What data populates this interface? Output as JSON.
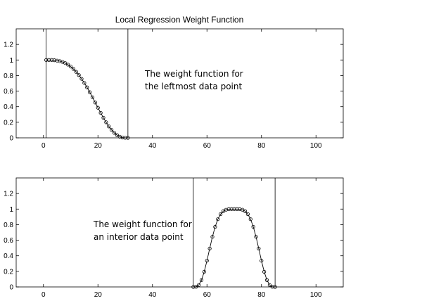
{
  "figure": {
    "title": "Local Regression Weight Function"
  },
  "chart_data": [
    {
      "type": "line",
      "title": "Local Regression Weight Function",
      "xlabel": "",
      "ylabel": "",
      "xlim": [
        -10,
        110
      ],
      "ylim": [
        0,
        1.4
      ],
      "xticks": [
        0,
        20,
        40,
        60,
        80,
        100
      ],
      "yticks": [
        0,
        0.2,
        0.4,
        0.6,
        0.8,
        1,
        1.2
      ],
      "grid": false,
      "vlines": [
        1,
        31
      ],
      "annotation": [
        "The weight function for",
        "the leftmost data point"
      ],
      "series": [
        {
          "marker": "circle",
          "x": [
            1,
            2,
            3,
            4,
            5,
            6,
            7,
            8,
            9,
            10,
            11,
            12,
            13,
            14,
            15,
            16,
            17,
            18,
            19,
            20,
            21,
            22,
            23,
            24,
            25,
            26,
            27,
            28,
            29,
            30,
            31
          ],
          "y": [
            1.0,
            1.0,
            1.0,
            0.997,
            0.992,
            0.985,
            0.975,
            0.96,
            0.94,
            0.915,
            0.885,
            0.848,
            0.806,
            0.758,
            0.705,
            0.648,
            0.586,
            0.521,
            0.454,
            0.387,
            0.321,
            0.258,
            0.2,
            0.147,
            0.102,
            0.064,
            0.035,
            0.015,
            0.004,
            0.0005,
            0.0
          ]
        }
      ]
    },
    {
      "type": "line",
      "title": "",
      "xlabel": "",
      "ylabel": "",
      "xlim": [
        -10,
        110
      ],
      "ylim": [
        0,
        1.4
      ],
      "xticks": [
        0,
        20,
        40,
        60,
        80,
        100
      ],
      "yticks": [
        0,
        0.2,
        0.4,
        0.6,
        0.8,
        1,
        1.2
      ],
      "grid": false,
      "vlines": [
        55,
        85
      ],
      "annotation": [
        "The weight function for",
        "an interior data point"
      ],
      "series": [
        {
          "marker": "circle",
          "x": [
            55,
            56,
            57,
            58,
            59,
            60,
            61,
            62,
            63,
            64,
            65,
            66,
            67,
            68,
            69,
            70,
            71,
            72,
            73,
            74,
            75,
            76,
            77,
            78,
            79,
            80,
            81,
            82,
            83,
            84,
            85
          ],
          "y": [
            0.0,
            0.002,
            0.024,
            0.088,
            0.195,
            0.337,
            0.493,
            0.644,
            0.772,
            0.87,
            0.935,
            0.973,
            0.992,
            0.999,
            1.0,
            1.0,
            1.0,
            0.999,
            0.992,
            0.973,
            0.935,
            0.87,
            0.772,
            0.644,
            0.493,
            0.337,
            0.195,
            0.088,
            0.024,
            0.002,
            0.0
          ]
        }
      ]
    }
  ]
}
